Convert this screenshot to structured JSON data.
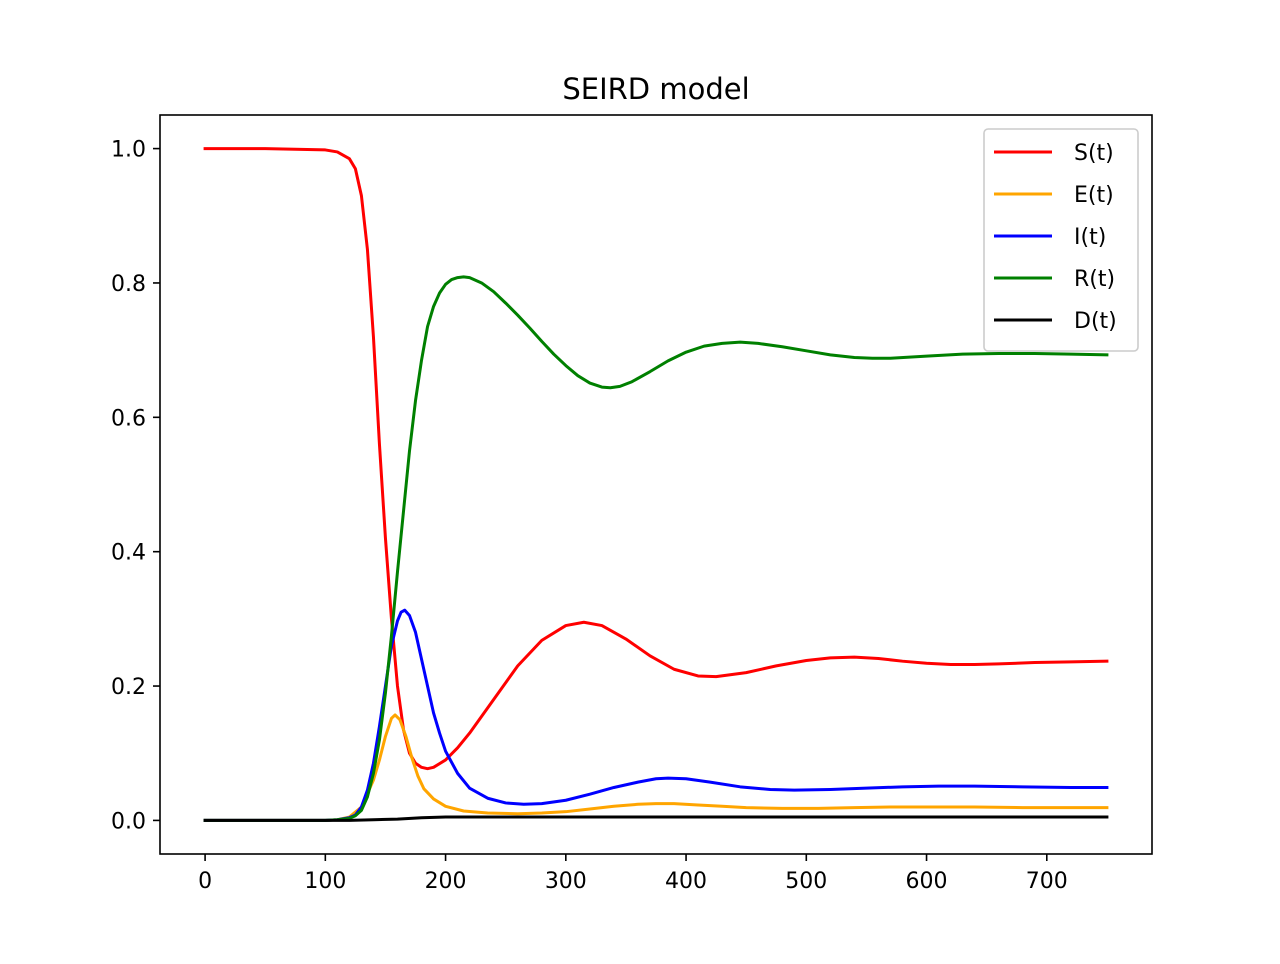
{
  "chart_data": {
    "type": "line",
    "title": "SEIRD model",
    "xlabel": "",
    "ylabel": "",
    "xlim": [
      -37.5,
      787.5
    ],
    "ylim": [
      -0.05,
      1.05
    ],
    "x_ticks": [
      0,
      100,
      200,
      300,
      400,
      500,
      600,
      700
    ],
    "x_tick_labels": [
      "0",
      "100",
      "200",
      "300",
      "400",
      "500",
      "600",
      "700"
    ],
    "y_ticks": [
      0.0,
      0.2,
      0.4,
      0.6,
      0.8,
      1.0
    ],
    "y_tick_labels": [
      "0.0",
      "0.2",
      "0.4",
      "0.6",
      "0.8",
      "1.0"
    ],
    "grid": false,
    "legend_position": "top-right",
    "series": [
      {
        "name": "S(t)",
        "color": "#ff0000",
        "points": [
          [
            0,
            1.0
          ],
          [
            50,
            1.0
          ],
          [
            100,
            0.998
          ],
          [
            110,
            0.995
          ],
          [
            120,
            0.985
          ],
          [
            125,
            0.97
          ],
          [
            130,
            0.93
          ],
          [
            135,
            0.85
          ],
          [
            140,
            0.72
          ],
          [
            145,
            0.56
          ],
          [
            150,
            0.42
          ],
          [
            155,
            0.3
          ],
          [
            160,
            0.2
          ],
          [
            165,
            0.135
          ],
          [
            170,
            0.1
          ],
          [
            175,
            0.085
          ],
          [
            180,
            0.079
          ],
          [
            185,
            0.077
          ],
          [
            190,
            0.079
          ],
          [
            200,
            0.09
          ],
          [
            210,
            0.108
          ],
          [
            220,
            0.13
          ],
          [
            240,
            0.18
          ],
          [
            260,
            0.23
          ],
          [
            280,
            0.268
          ],
          [
            300,
            0.29
          ],
          [
            315,
            0.295
          ],
          [
            330,
            0.29
          ],
          [
            350,
            0.27
          ],
          [
            370,
            0.245
          ],
          [
            390,
            0.225
          ],
          [
            410,
            0.215
          ],
          [
            425,
            0.214
          ],
          [
            450,
            0.22
          ],
          [
            475,
            0.23
          ],
          [
            500,
            0.238
          ],
          [
            520,
            0.242
          ],
          [
            540,
            0.243
          ],
          [
            560,
            0.241
          ],
          [
            580,
            0.237
          ],
          [
            600,
            0.234
          ],
          [
            620,
            0.232
          ],
          [
            640,
            0.232
          ],
          [
            660,
            0.233
          ],
          [
            690,
            0.235
          ],
          [
            720,
            0.236
          ],
          [
            750,
            0.237
          ]
        ]
      },
      {
        "name": "E(t)",
        "color": "#ffa500",
        "points": [
          [
            0,
            0.0
          ],
          [
            100,
            0.0
          ],
          [
            110,
            0.001
          ],
          [
            120,
            0.005
          ],
          [
            130,
            0.02
          ],
          [
            140,
            0.06
          ],
          [
            145,
            0.09
          ],
          [
            150,
            0.125
          ],
          [
            155,
            0.152
          ],
          [
            158,
            0.157
          ],
          [
            162,
            0.15
          ],
          [
            167,
            0.125
          ],
          [
            172,
            0.093
          ],
          [
            177,
            0.066
          ],
          [
            182,
            0.047
          ],
          [
            190,
            0.032
          ],
          [
            200,
            0.021
          ],
          [
            215,
            0.014
          ],
          [
            235,
            0.011
          ],
          [
            260,
            0.01
          ],
          [
            280,
            0.011
          ],
          [
            300,
            0.013
          ],
          [
            320,
            0.017
          ],
          [
            340,
            0.021
          ],
          [
            360,
            0.024
          ],
          [
            375,
            0.025
          ],
          [
            390,
            0.025
          ],
          [
            410,
            0.023
          ],
          [
            430,
            0.021
          ],
          [
            450,
            0.019
          ],
          [
            480,
            0.018
          ],
          [
            510,
            0.018
          ],
          [
            540,
            0.019
          ],
          [
            570,
            0.02
          ],
          [
            600,
            0.02
          ],
          [
            640,
            0.02
          ],
          [
            680,
            0.019
          ],
          [
            720,
            0.019
          ],
          [
            750,
            0.019
          ]
        ]
      },
      {
        "name": "I(t)",
        "color": "#0000ff",
        "points": [
          [
            0,
            0.0
          ],
          [
            100,
            0.0
          ],
          [
            110,
            0.001
          ],
          [
            120,
            0.004
          ],
          [
            125,
            0.008
          ],
          [
            130,
            0.02
          ],
          [
            135,
            0.045
          ],
          [
            140,
            0.085
          ],
          [
            145,
            0.14
          ],
          [
            150,
            0.2
          ],
          [
            155,
            0.26
          ],
          [
            160,
            0.297
          ],
          [
            163,
            0.31
          ],
          [
            166,
            0.313
          ],
          [
            170,
            0.305
          ],
          [
            175,
            0.28
          ],
          [
            180,
            0.24
          ],
          [
            185,
            0.2
          ],
          [
            190,
            0.16
          ],
          [
            195,
            0.13
          ],
          [
            200,
            0.103
          ],
          [
            210,
            0.07
          ],
          [
            220,
            0.048
          ],
          [
            235,
            0.033
          ],
          [
            250,
            0.026
          ],
          [
            265,
            0.024
          ],
          [
            280,
            0.025
          ],
          [
            300,
            0.03
          ],
          [
            320,
            0.039
          ],
          [
            340,
            0.049
          ],
          [
            360,
            0.057
          ],
          [
            375,
            0.062
          ],
          [
            385,
            0.063
          ],
          [
            400,
            0.062
          ],
          [
            420,
            0.057
          ],
          [
            445,
            0.05
          ],
          [
            470,
            0.046
          ],
          [
            490,
            0.045
          ],
          [
            520,
            0.046
          ],
          [
            550,
            0.048
          ],
          [
            580,
            0.05
          ],
          [
            610,
            0.051
          ],
          [
            640,
            0.051
          ],
          [
            680,
            0.05
          ],
          [
            720,
            0.049
          ],
          [
            750,
            0.049
          ]
        ]
      },
      {
        "name": "R(t)",
        "color": "#008000",
        "points": [
          [
            0,
            0.0
          ],
          [
            100,
            0.0
          ],
          [
            110,
            0.001
          ],
          [
            120,
            0.003
          ],
          [
            125,
            0.007
          ],
          [
            130,
            0.015
          ],
          [
            135,
            0.035
          ],
          [
            140,
            0.07
          ],
          [
            145,
            0.12
          ],
          [
            150,
            0.19
          ],
          [
            155,
            0.275
          ],
          [
            160,
            0.37
          ],
          [
            165,
            0.46
          ],
          [
            170,
            0.55
          ],
          [
            175,
            0.625
          ],
          [
            180,
            0.685
          ],
          [
            185,
            0.735
          ],
          [
            190,
            0.765
          ],
          [
            195,
            0.785
          ],
          [
            200,
            0.798
          ],
          [
            205,
            0.805
          ],
          [
            210,
            0.808
          ],
          [
            215,
            0.809
          ],
          [
            220,
            0.808
          ],
          [
            230,
            0.8
          ],
          [
            240,
            0.787
          ],
          [
            250,
            0.77
          ],
          [
            260,
            0.752
          ],
          [
            270,
            0.733
          ],
          [
            280,
            0.713
          ],
          [
            290,
            0.694
          ],
          [
            300,
            0.677
          ],
          [
            310,
            0.662
          ],
          [
            320,
            0.651
          ],
          [
            330,
            0.645
          ],
          [
            337,
            0.644
          ],
          [
            345,
            0.646
          ],
          [
            355,
            0.653
          ],
          [
            370,
            0.668
          ],
          [
            385,
            0.684
          ],
          [
            400,
            0.697
          ],
          [
            415,
            0.706
          ],
          [
            430,
            0.71
          ],
          [
            445,
            0.712
          ],
          [
            460,
            0.71
          ],
          [
            480,
            0.705
          ],
          [
            500,
            0.699
          ],
          [
            520,
            0.693
          ],
          [
            540,
            0.689
          ],
          [
            555,
            0.688
          ],
          [
            570,
            0.688
          ],
          [
            600,
            0.691
          ],
          [
            630,
            0.694
          ],
          [
            660,
            0.695
          ],
          [
            690,
            0.695
          ],
          [
            720,
            0.694
          ],
          [
            750,
            0.693
          ]
        ]
      },
      {
        "name": "D(t)",
        "color": "#000000",
        "points": [
          [
            0,
            0.0
          ],
          [
            120,
            0.0
          ],
          [
            140,
            0.001
          ],
          [
            160,
            0.002
          ],
          [
            180,
            0.004
          ],
          [
            200,
            0.005
          ],
          [
            250,
            0.005
          ],
          [
            350,
            0.005
          ],
          [
            500,
            0.005
          ],
          [
            750,
            0.005
          ]
        ]
      }
    ]
  }
}
